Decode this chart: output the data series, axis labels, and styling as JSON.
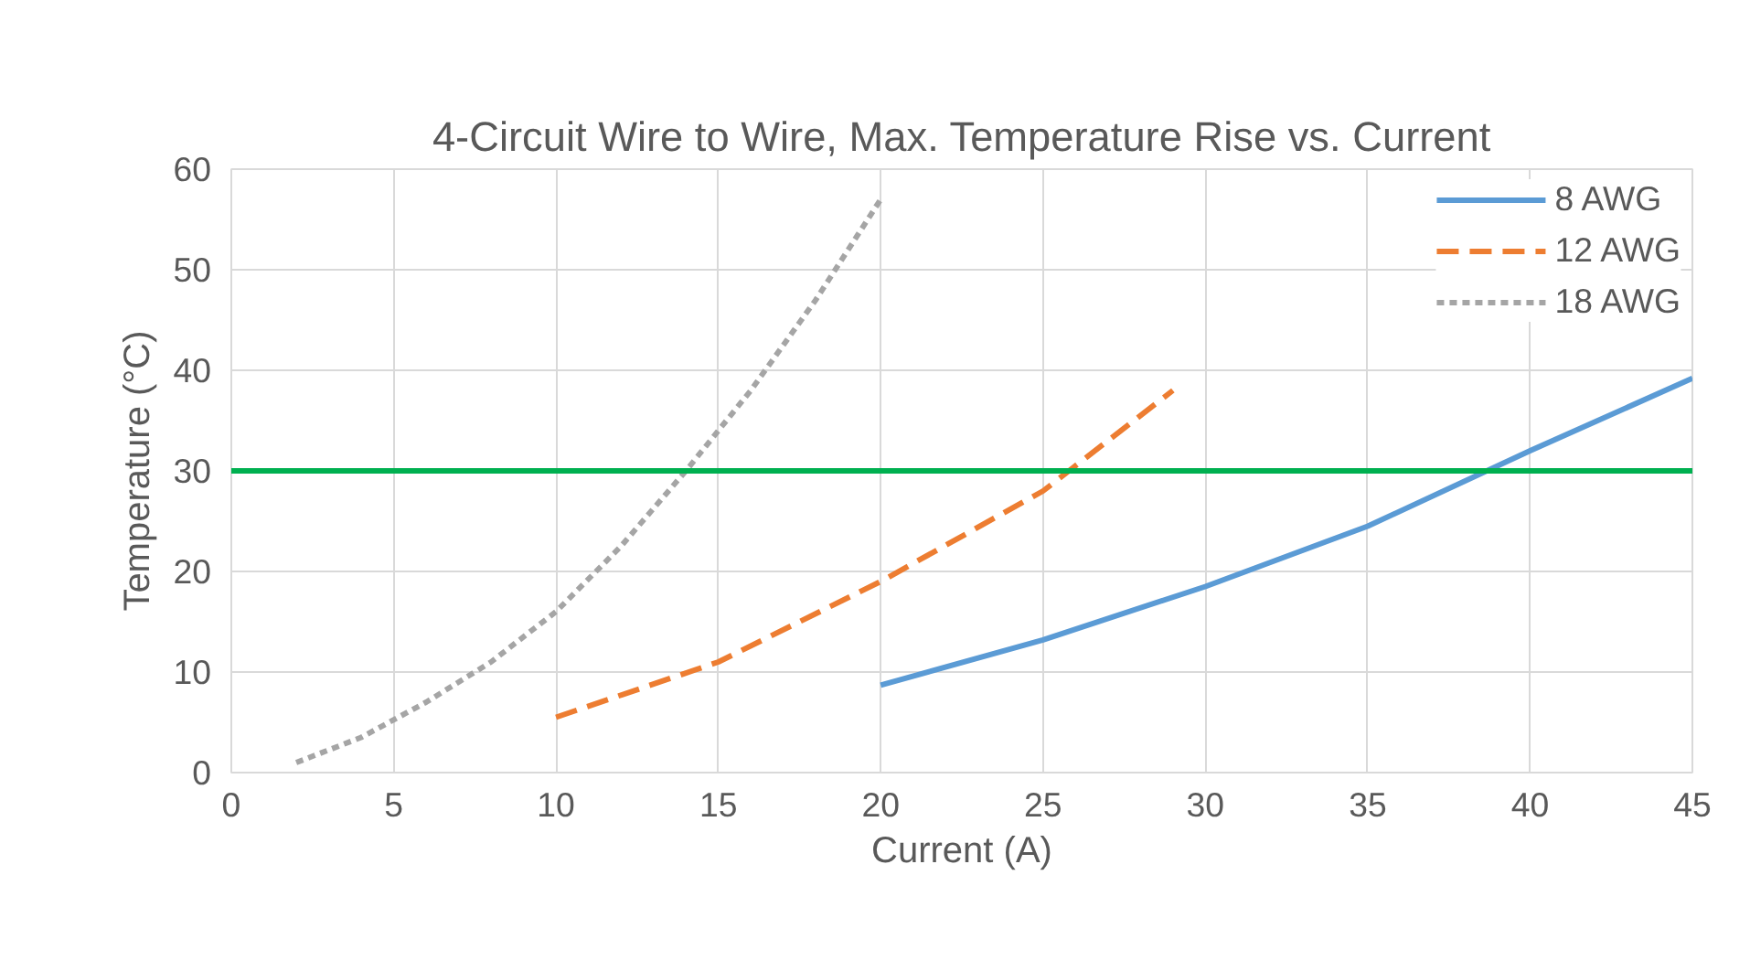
{
  "chart_data": {
    "type": "line",
    "title": "4-Circuit Wire to Wire, Max. Temperature Rise vs. Current",
    "xlabel": "Current (A)",
    "ylabel": "Temperature (°C)",
    "xlim": [
      0,
      45
    ],
    "xticks": [
      0,
      5,
      10,
      15,
      20,
      25,
      30,
      35,
      40,
      45
    ],
    "ylim": [
      0,
      60
    ],
    "yticks": [
      0,
      10,
      20,
      30,
      40,
      50,
      60
    ],
    "grid": true,
    "legend": "top right",
    "series": [
      {
        "name": "8 AWG",
        "color": "#5b9bd5",
        "line_style": "solid",
        "x": [
          20,
          25,
          30,
          35,
          40,
          45
        ],
        "values": [
          8.7,
          13.2,
          18.5,
          24.5,
          32,
          39.2
        ]
      },
      {
        "name": "12 AWG",
        "color": "#ed7d31",
        "line_style": "dashed",
        "x": [
          10,
          15,
          20,
          25,
          29
        ],
        "values": [
          5.5,
          11,
          19,
          28,
          38
        ]
      },
      {
        "name": "18 AWG",
        "color": "#a5a5a5",
        "line_style": "dotted",
        "x": [
          2,
          4,
          6,
          8,
          10,
          12,
          14,
          16,
          18,
          20
        ],
        "values": [
          1,
          3.5,
          7,
          11,
          16,
          22.5,
          30,
          38,
          47,
          57
        ]
      }
    ],
    "ref_lines": [
      {
        "axis": "y",
        "value": 30,
        "color": "#00b050",
        "line_style": "solid"
      }
    ]
  }
}
